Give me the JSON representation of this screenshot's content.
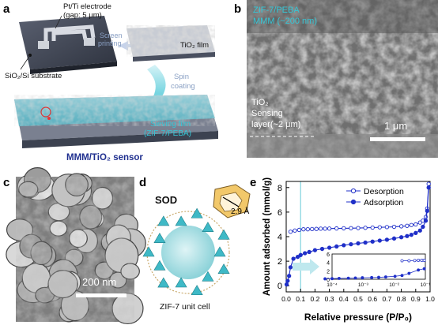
{
  "panels": {
    "a": {
      "letter": "a",
      "electrode_label_line1": "Pt/Ti electrode",
      "electrode_label_line2": "(gap: 5 μm)",
      "substrate_label": "SiO₂/Si substrate",
      "screen_printing_line1": "Screen",
      "screen_printing_line2": "printing",
      "tio2_film_label": "TiO₂ film",
      "spin_coating_line1": "Spin",
      "spin_coating_line2": "coating",
      "sieving_film_line1": "Sieving film",
      "sieving_film_line2": "(ZIF-7/PEBA)",
      "sensor_label": "MMM/TiO₂ sensor"
    },
    "b": {
      "letter": "b",
      "mmm_line1": "ZIF-7/PEBA",
      "mmm_line2": "MMM (~200 nm)",
      "tio2_line1": "TiO₂",
      "tio2_line2": "Sensing",
      "tio2_line3": "layer(~2 μm)",
      "scale_bar": "1 μm"
    },
    "c": {
      "letter": "c",
      "scale_bar": "200 nm"
    },
    "d": {
      "letter": "d",
      "sod_label": "SOD",
      "pore_label": "2.9 Å",
      "caption": "ZIF-7 unit cell"
    },
    "e": {
      "letter": "e"
    }
  },
  "colors": {
    "cyan_text": "#35c6d6",
    "navy_text": "#1f2f8f",
    "series_blue": "#1f2fc8",
    "sem_gray": "#8c8c8c"
  },
  "chart_data": {
    "type": "line",
    "xlabel": "Relative pressure (P/P₀)",
    "ylabel": "Amount adsorbed (mmol/g)",
    "xlim": [
      0,
      1
    ],
    "ylim": [
      -0.5,
      8.5
    ],
    "xticks": [
      0.0,
      0.1,
      0.2,
      0.3,
      0.4,
      0.5,
      0.6,
      0.7,
      0.8,
      0.9,
      1.0
    ],
    "yticks": [
      0,
      2,
      4,
      6,
      8
    ],
    "legend_position": "top-right",
    "highlight_x": 0.1,
    "series": [
      {
        "name": "Desorption",
        "marker": "open-circle",
        "x": [
          0.03,
          0.06,
          0.09,
          0.12,
          0.15,
          0.18,
          0.21,
          0.24,
          0.27,
          0.3,
          0.35,
          0.4,
          0.45,
          0.5,
          0.55,
          0.6,
          0.65,
          0.7,
          0.75,
          0.8,
          0.84,
          0.87,
          0.9,
          0.93,
          0.95,
          0.97,
          0.98,
          0.99
        ],
        "y": [
          4.4,
          4.5,
          4.55,
          4.6,
          4.6,
          4.62,
          4.63,
          4.65,
          4.65,
          4.66,
          4.67,
          4.68,
          4.69,
          4.7,
          4.72,
          4.74,
          4.76,
          4.78,
          4.8,
          4.84,
          4.88,
          4.95,
          5.0,
          5.15,
          5.3,
          5.6,
          6.3,
          8.3
        ]
      },
      {
        "name": "Adsorption",
        "marker": "filled-circle",
        "x": [
          0.003,
          0.01,
          0.02,
          0.03,
          0.05,
          0.08,
          0.1,
          0.13,
          0.16,
          0.2,
          0.25,
          0.3,
          0.35,
          0.4,
          0.45,
          0.5,
          0.55,
          0.6,
          0.65,
          0.7,
          0.75,
          0.8,
          0.84,
          0.87,
          0.9,
          0.93,
          0.95,
          0.97,
          0.98,
          0.99
        ],
        "y": [
          0.1,
          0.4,
          0.8,
          1.5,
          2.2,
          2.35,
          2.5,
          2.65,
          2.75,
          2.9,
          3.0,
          3.1,
          3.2,
          3.3,
          3.38,
          3.45,
          3.52,
          3.6,
          3.68,
          3.75,
          3.85,
          3.95,
          4.05,
          4.15,
          4.3,
          4.5,
          4.8,
          5.3,
          6.1,
          8.0
        ]
      }
    ],
    "inset": {
      "x_scale": "log",
      "xticks": [
        "10⁻⁴",
        "10⁻³",
        "10⁻²",
        "10⁻¹"
      ],
      "yticks": [
        0,
        2,
        4,
        6
      ],
      "xlim_log10": [
        -4,
        0
      ],
      "ylim": [
        0,
        6
      ],
      "desorption": {
        "x": [
          0.1,
          0.2,
          0.35,
          0.5,
          0.7,
          0.9
        ],
        "y": [
          4.4,
          4.4,
          4.45,
          4.5,
          4.5,
          4.5
        ]
      },
      "adsorption": {
        "x": [
          5e-05,
          0.0001,
          0.0002,
          0.0005,
          0.001,
          0.002,
          0.005,
          0.01,
          0.02,
          0.05,
          0.1,
          0.2,
          0.5,
          0.9
        ],
        "y": [
          0.1,
          0.15,
          0.2,
          0.25,
          0.3,
          0.35,
          0.4,
          0.45,
          0.55,
          0.7,
          0.9,
          1.4,
          2.2,
          2.5
        ]
      }
    }
  }
}
